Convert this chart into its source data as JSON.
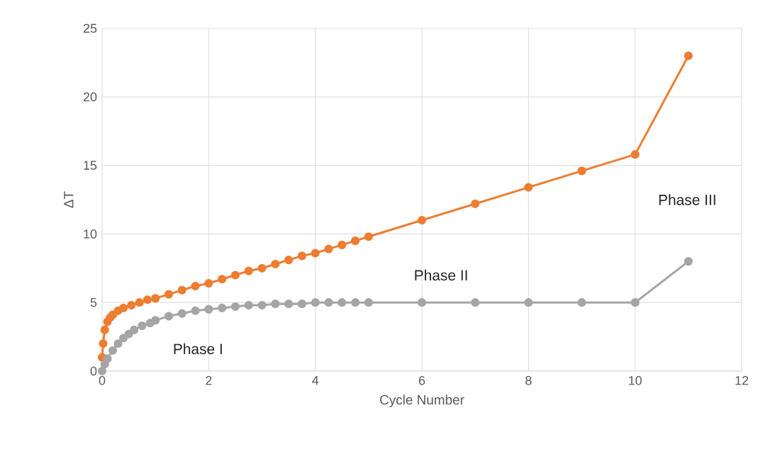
{
  "chart_data": {
    "type": "line",
    "xlabel": "Cycle Number",
    "ylabel": "ΔT",
    "xlim": [
      0,
      12
    ],
    "xticks": [
      0,
      2,
      4,
      6,
      8,
      10,
      12
    ],
    "ylim": [
      0,
      25
    ],
    "yticks": [
      0,
      5,
      10,
      15,
      20,
      25
    ],
    "grid": true,
    "marker": "circle",
    "line_style": "solid",
    "series": [
      {
        "color": "#ed7d31",
        "x": [
          0,
          0.02,
          0.05,
          0.1,
          0.15,
          0.2,
          0.3,
          0.4,
          0.55,
          0.7,
          0.85,
          1,
          1.25,
          1.5,
          1.75,
          2,
          2.25,
          2.5,
          2.75,
          3,
          3.25,
          3.5,
          3.75,
          4,
          4.25,
          4.5,
          4.75,
          5,
          6,
          7,
          8,
          9,
          10,
          11
        ],
        "values": [
          1.0,
          2.0,
          3.0,
          3.6,
          3.9,
          4.1,
          4.4,
          4.6,
          4.8,
          5.0,
          5.2,
          5.3,
          5.6,
          5.9,
          6.2,
          6.4,
          6.7,
          7.0,
          7.3,
          7.5,
          7.8,
          8.1,
          8.4,
          8.6,
          8.9,
          9.2,
          9.5,
          9.8,
          11.0,
          12.2,
          13.4,
          14.6,
          15.8,
          23.0
        ]
      },
      {
        "color": "#a5a5a5",
        "x": [
          0,
          0.05,
          0.1,
          0.2,
          0.3,
          0.4,
          0.5,
          0.6,
          0.75,
          0.9,
          1,
          1.25,
          1.5,
          1.75,
          2,
          2.25,
          2.5,
          2.75,
          3,
          3.25,
          3.5,
          3.75,
          4,
          4.25,
          4.5,
          4.75,
          5,
          6,
          7,
          8,
          9,
          10,
          11
        ],
        "values": [
          0,
          0.5,
          0.9,
          1.5,
          2.0,
          2.4,
          2.7,
          3.0,
          3.3,
          3.5,
          3.7,
          4.0,
          4.2,
          4.4,
          4.5,
          4.6,
          4.7,
          4.8,
          4.8,
          4.9,
          4.9,
          4.9,
          5.0,
          5.0,
          5.0,
          5.0,
          5.0,
          5.0,
          5.0,
          5.0,
          5.0,
          5.0,
          8.0
        ]
      }
    ],
    "annotations": [
      "Phase I",
      "Phase II",
      "Phase III"
    ]
  }
}
